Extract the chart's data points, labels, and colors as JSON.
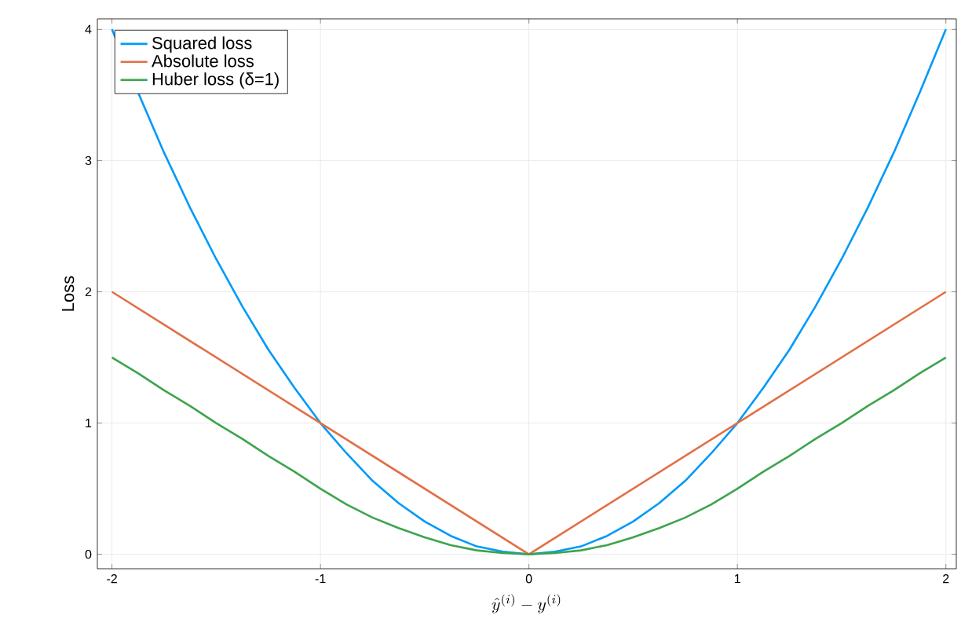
{
  "chart_data": {
    "type": "line",
    "xlabel": "\\hat{y}^{(i)} - y^{(i)}",
    "ylabel": "Loss",
    "xlim": [
      -2.07,
      2.05
    ],
    "ylim": [
      -0.11,
      4.08
    ],
    "xticks": [
      -2,
      -1,
      0,
      1,
      2
    ],
    "yticks": [
      0,
      1,
      2,
      3,
      4
    ],
    "grid": true,
    "legend": "top left",
    "line_style": "solid",
    "marker": "none",
    "series": [
      {
        "name": "Squared loss",
        "color": "#009af9",
        "x": [
          -2,
          -1.875,
          -1.75,
          -1.625,
          -1.5,
          -1.375,
          -1.25,
          -1.125,
          -1,
          -0.875,
          -0.75,
          -0.625,
          -0.5,
          -0.375,
          -0.25,
          -0.125,
          0,
          0.125,
          0.25,
          0.375,
          0.5,
          0.625,
          0.75,
          0.875,
          1,
          1.125,
          1.25,
          1.375,
          1.5,
          1.625,
          1.75,
          1.875,
          2
        ],
        "values": [
          4,
          3.52,
          3.06,
          2.64,
          2.25,
          1.89,
          1.56,
          1.27,
          1,
          0.77,
          0.56,
          0.39,
          0.25,
          0.14,
          0.06,
          0.02,
          0,
          0.02,
          0.06,
          0.14,
          0.25,
          0.39,
          0.56,
          0.77,
          1,
          1.27,
          1.56,
          1.89,
          2.25,
          2.64,
          3.06,
          3.52,
          4
        ]
      },
      {
        "name": "Absolute loss",
        "color": "#e26f46",
        "x": [
          -2,
          0,
          2
        ],
        "values": [
          2,
          0,
          2
        ]
      },
      {
        "name": "Huber loss (δ=1)",
        "color": "#3da44d",
        "x": [
          -2,
          -1.875,
          -1.75,
          -1.625,
          -1.5,
          -1.375,
          -1.25,
          -1.125,
          -1,
          -0.875,
          -0.75,
          -0.625,
          -0.5,
          -0.375,
          -0.25,
          -0.125,
          0,
          0.125,
          0.25,
          0.375,
          0.5,
          0.625,
          0.75,
          0.875,
          1,
          1.125,
          1.25,
          1.375,
          1.5,
          1.625,
          1.75,
          1.875,
          2
        ],
        "values": [
          1.5,
          1.38,
          1.25,
          1.13,
          1,
          0.88,
          0.75,
          0.63,
          0.5,
          0.38,
          0.28,
          0.2,
          0.13,
          0.07,
          0.03,
          0.01,
          0,
          0.01,
          0.03,
          0.07,
          0.13,
          0.2,
          0.28,
          0.38,
          0.5,
          0.63,
          0.75,
          0.88,
          1,
          1.13,
          1.25,
          1.38,
          1.5
        ]
      }
    ]
  }
}
